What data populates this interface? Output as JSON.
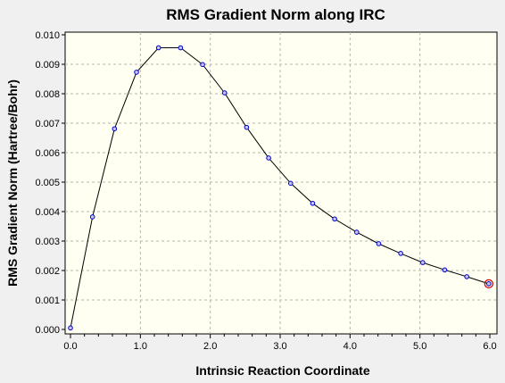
{
  "chart_data": {
    "type": "line",
    "title": "RMS Gradient Norm along IRC",
    "xlabel": "Intrinsic Reaction Coordinate",
    "ylabel": "RMS Gradient Norm (Hartree/Bohr)",
    "xlim": [
      0.0,
      6.0
    ],
    "ylim": [
      0.0,
      0.01
    ],
    "x_ticks": [
      "0.0",
      "1.0",
      "2.0",
      "3.0",
      "4.0",
      "5.0",
      "6.0"
    ],
    "y_ticks": [
      "0.000",
      "0.001",
      "0.002",
      "0.003",
      "0.004",
      "0.005",
      "0.006",
      "0.007",
      "0.008",
      "0.009",
      "0.010"
    ],
    "grid": true,
    "series": [
      {
        "x": [
          0.0,
          0.315,
          0.63,
          0.945,
          1.26,
          1.575,
          1.89,
          2.205,
          2.52,
          2.835,
          3.15,
          3.465,
          3.78,
          4.095,
          4.41,
          4.725,
          5.04,
          5.355,
          5.67,
          5.985
        ],
        "y": [
          5e-05,
          0.00382,
          0.00681,
          0.00873,
          0.00956,
          0.00956,
          0.00899,
          0.00803,
          0.00686,
          0.00582,
          0.00496,
          0.00428,
          0.00375,
          0.0033,
          0.00291,
          0.00258,
          0.00227,
          0.00202,
          0.00179,
          0.00155
        ]
      }
    ],
    "highlighted_point_index": 19,
    "colors": {
      "plot_background": "#fffff2",
      "window_background": "#f0f0f0",
      "line": "#000000",
      "marker_fill": "#c6c6ff",
      "marker_stroke": "#0000c8",
      "highlight": "#d40000",
      "grid": "#b4b4b4"
    }
  }
}
